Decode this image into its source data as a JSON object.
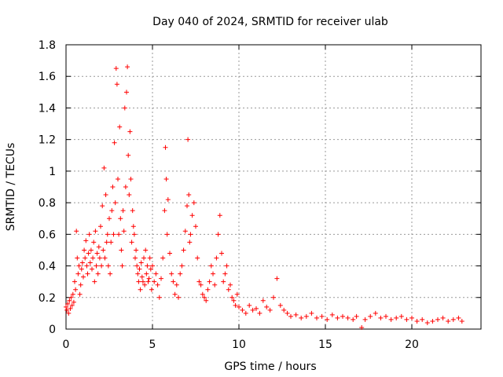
{
  "chart_data": {
    "type": "scatter",
    "title": "Day 040 of 2024, SRMTID for receiver ulab",
    "xlabel": "GPS time / hours",
    "ylabel": "SRMTID / TECUs",
    "xlim": [
      0,
      24
    ],
    "ylim": [
      0,
      1.8
    ],
    "xticks": [
      0,
      5,
      10,
      15,
      20
    ],
    "xtick_labels": [
      "0",
      "5",
      "10",
      "15",
      "20"
    ],
    "yticks": [
      0,
      0.2,
      0.4,
      0.6,
      0.8,
      1,
      1.2,
      1.4,
      1.6,
      1.8
    ],
    "ytick_labels": [
      "0",
      "0.2",
      "0.4",
      "0.6",
      "0.8",
      "1",
      "1.2",
      "1.4",
      "1.6",
      "1.8"
    ],
    "grid": true,
    "marker": "+",
    "series": [
      {
        "name": "SRMTID",
        "color": "#ff0000",
        "x": [
          0.0,
          0.05,
          0.1,
          0.15,
          0.2,
          0.25,
          0.3,
          0.35,
          0.4,
          0.45,
          0.5,
          0.55,
          0.6,
          0.65,
          0.7,
          0.75,
          0.8,
          0.85,
          0.9,
          0.95,
          1.0,
          1.05,
          1.1,
          1.15,
          1.2,
          1.25,
          1.3,
          1.35,
          1.4,
          1.45,
          1.5,
          1.55,
          1.6,
          1.65,
          1.7,
          1.75,
          1.8,
          1.85,
          1.9,
          1.95,
          2.0,
          2.05,
          2.1,
          2.15,
          2.2,
          2.25,
          2.3,
          2.35,
          2.4,
          2.45,
          2.5,
          2.55,
          2.6,
          2.65,
          2.7,
          2.75,
          2.8,
          2.85,
          2.9,
          2.95,
          3.0,
          3.05,
          3.1,
          3.15,
          3.2,
          3.25,
          3.3,
          3.35,
          3.4,
          3.45,
          3.5,
          3.55,
          3.6,
          3.65,
          3.7,
          3.75,
          3.8,
          3.85,
          3.9,
          3.95,
          4.0,
          4.05,
          4.1,
          4.15,
          4.2,
          4.25,
          4.3,
          4.35,
          4.4,
          4.45,
          4.5,
          4.55,
          4.6,
          4.65,
          4.7,
          4.75,
          4.8,
          4.85,
          4.9,
          4.95,
          5.0,
          5.1,
          5.2,
          5.3,
          5.4,
          5.5,
          5.6,
          5.7,
          5.75,
          5.8,
          5.85,
          5.9,
          6.0,
          6.1,
          6.2,
          6.3,
          6.4,
          6.5,
          6.6,
          6.7,
          6.8,
          6.9,
          7.0,
          7.05,
          7.1,
          7.15,
          7.2,
          7.3,
          7.4,
          7.5,
          7.6,
          7.7,
          7.8,
          7.9,
          8.0,
          8.1,
          8.2,
          8.3,
          8.4,
          8.5,
          8.6,
          8.7,
          8.8,
          8.9,
          9.0,
          9.1,
          9.2,
          9.3,
          9.4,
          9.5,
          9.6,
          9.7,
          9.8,
          9.9,
          10.0,
          10.2,
          10.4,
          10.6,
          10.8,
          11.0,
          11.2,
          11.4,
          11.6,
          11.8,
          12.0,
          12.2,
          12.4,
          12.6,
          12.8,
          13.0,
          13.3,
          13.6,
          13.9,
          14.2,
          14.5,
          14.8,
          15.1,
          15.4,
          15.7,
          16.0,
          16.3,
          16.6,
          16.8,
          17.1,
          17.3,
          17.6,
          17.9,
          18.2,
          18.5,
          18.8,
          19.1,
          19.4,
          19.7,
          20.0,
          20.3,
          20.6,
          20.9,
          21.2,
          21.5,
          21.8,
          22.1,
          22.4,
          22.7,
          22.9
        ],
        "y": [
          0.14,
          0.12,
          0.16,
          0.1,
          0.18,
          0.13,
          0.2,
          0.15,
          0.22,
          0.17,
          0.3,
          0.25,
          0.62,
          0.45,
          0.35,
          0.4,
          0.22,
          0.28,
          0.38,
          0.42,
          0.33,
          0.5,
          0.45,
          0.56,
          0.4,
          0.35,
          0.48,
          0.6,
          0.42,
          0.5,
          0.38,
          0.45,
          0.55,
          0.3,
          0.62,
          0.4,
          0.48,
          0.35,
          0.52,
          0.45,
          0.65,
          0.4,
          0.78,
          0.5,
          1.02,
          0.45,
          0.85,
          0.55,
          0.6,
          0.4,
          0.7,
          0.35,
          0.55,
          0.75,
          0.9,
          0.6,
          1.18,
          0.8,
          1.65,
          1.55,
          0.95,
          0.6,
          1.28,
          0.7,
          0.5,
          0.4,
          0.75,
          0.62,
          1.4,
          0.9,
          1.5,
          1.66,
          1.1,
          0.85,
          1.25,
          0.95,
          0.55,
          0.75,
          0.65,
          0.6,
          0.45,
          0.5,
          0.4,
          0.35,
          0.3,
          0.38,
          0.25,
          0.42,
          0.33,
          0.3,
          0.45,
          0.28,
          0.5,
          0.35,
          0.4,
          0.3,
          0.32,
          0.45,
          0.38,
          0.25,
          0.4,
          0.3,
          0.35,
          0.28,
          0.2,
          0.32,
          0.45,
          0.75,
          1.15,
          0.95,
          0.6,
          0.82,
          0.48,
          0.35,
          0.3,
          0.22,
          0.28,
          0.2,
          0.35,
          0.4,
          0.5,
          0.62,
          0.78,
          1.2,
          0.85,
          0.55,
          0.6,
          0.72,
          0.8,
          0.65,
          0.45,
          0.3,
          0.28,
          0.22,
          0.2,
          0.18,
          0.25,
          0.3,
          0.4,
          0.35,
          0.28,
          0.45,
          0.6,
          0.72,
          0.48,
          0.3,
          0.35,
          0.4,
          0.25,
          0.28,
          0.2,
          0.18,
          0.15,
          0.22,
          0.14,
          0.12,
          0.1,
          0.15,
          0.12,
          0.13,
          0.1,
          0.18,
          0.14,
          0.12,
          0.2,
          0.32,
          0.15,
          0.12,
          0.1,
          0.08,
          0.09,
          0.07,
          0.08,
          0.1,
          0.07,
          0.08,
          0.06,
          0.09,
          0.07,
          0.08,
          0.07,
          0.06,
          0.08,
          0.01,
          0.06,
          0.08,
          0.1,
          0.07,
          0.08,
          0.06,
          0.07,
          0.08,
          0.06,
          0.07,
          0.05,
          0.06,
          0.04,
          0.05,
          0.06,
          0.07,
          0.05,
          0.06,
          0.07,
          0.05
        ]
      }
    ]
  }
}
